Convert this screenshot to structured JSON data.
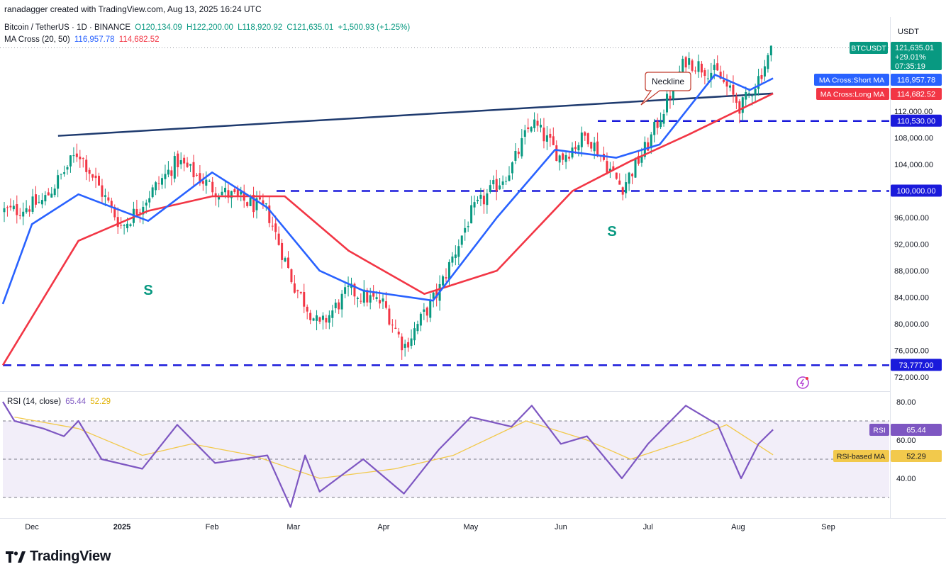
{
  "header": {
    "credit": "ranadagger created with TradingView.com, Aug 13, 2025 16:24 UTC",
    "symbol": "Bitcoin / TetherUS · 1D · BINANCE",
    "open": "O120,134.09",
    "high": "H122,200.00",
    "low": "L118,920.92",
    "close": "C121,635.01",
    "change": "+1,500.93 (+1.25%)",
    "ma_label": "MA Cross (20, 50)",
    "ma_short_val": "116,957.78",
    "ma_long_val": "114,682.52"
  },
  "rsi_header": {
    "label": "RSI (14, close)",
    "rsi_val": "65.44",
    "ma_val": "52.29"
  },
  "price_axis": {
    "currency": "USDT",
    "ticks": [
      "72,000.00",
      "76,000.00",
      "80,000.00",
      "84,000.00",
      "88,000.00",
      "92,000.00",
      "96,000.00",
      "100,000.00",
      "104,000.00",
      "108,000.00",
      "112,000.00"
    ]
  },
  "price_tags": {
    "symbol": "BTCUSDT",
    "price": "121,635.01",
    "pct": "+29.01%",
    "countdown": "07:35:19",
    "short_ma_label": "MA Cross:Short MA",
    "short_ma": "116,957.78",
    "long_ma_label": "MA Cross:Long MA",
    "long_ma": "114,682.52",
    "level_110": "110,530.00",
    "level_100": "100,000.00",
    "level_73": "73,777.00"
  },
  "rsi_axis": {
    "ticks": [
      "80.00",
      "60.00",
      "40.00"
    ],
    "rsi_tag_label": "RSI",
    "rsi_tag": "65.44",
    "ma_tag_label": "RSI-based MA",
    "ma_tag": "52.29"
  },
  "time_axis": [
    "Dec",
    "2025",
    "Feb",
    "Mar",
    "Apr",
    "May",
    "Jun",
    "Jul",
    "Aug",
    "Sep"
  ],
  "annotations": {
    "neckline": "Neckline",
    "left_shoulder": "S",
    "right_shoulder": "S"
  },
  "brand": "TradingView",
  "colors": {
    "up": "#089981",
    "down": "#f23645",
    "short_ma": "#2962ff",
    "long_ma": "#f23645",
    "neckline": "#1e3a6e",
    "levels": "#1a1adb",
    "rsi": "#7e57c2",
    "rsi_ma": "#f2c94c"
  },
  "chart_data": {
    "type": "candlestick",
    "title": "Bitcoin / TetherUS · 1D · BINANCE",
    "ylabel": "USDT",
    "ylim": [
      71000,
      124000
    ],
    "levels": [
      110530,
      100000,
      73777
    ],
    "neckline": {
      "from": {
        "date": "2024-12-10",
        "price": 108300
      },
      "to": {
        "date": "2025-08-13",
        "price": 114682.52
      }
    },
    "closes": [
      {
        "date": "2024-11-25",
        "close": 97000
      },
      {
        "date": "2024-12-05",
        "close": 98500
      },
      {
        "date": "2024-12-17",
        "close": 106000
      },
      {
        "date": "2025-01-01",
        "close": 94500
      },
      {
        "date": "2025-01-20",
        "close": 104500
      },
      {
        "date": "2025-02-01",
        "close": 100500
      },
      {
        "date": "2025-02-20",
        "close": 97000
      },
      {
        "date": "2025-03-01",
        "close": 86000
      },
      {
        "date": "2025-03-10",
        "close": 79500
      },
      {
        "date": "2025-03-20",
        "close": 85000
      },
      {
        "date": "2025-04-01",
        "close": 83000
      },
      {
        "date": "2025-04-08",
        "close": 76500
      },
      {
        "date": "2025-04-20",
        "close": 85000
      },
      {
        "date": "2025-05-01",
        "close": 96500
      },
      {
        "date": "2025-05-15",
        "close": 103500
      },
      {
        "date": "2025-05-22",
        "close": 110500
      },
      {
        "date": "2025-06-01",
        "close": 105000
      },
      {
        "date": "2025-06-10",
        "close": 108500
      },
      {
        "date": "2025-06-22",
        "close": 100500
      },
      {
        "date": "2025-07-01",
        "close": 107000
      },
      {
        "date": "2025-07-10",
        "close": 116000
      },
      {
        "date": "2025-07-14",
        "close": 119800
      },
      {
        "date": "2025-07-25",
        "close": 117500
      },
      {
        "date": "2025-08-02",
        "close": 112500
      },
      {
        "date": "2025-08-08",
        "close": 117000
      },
      {
        "date": "2025-08-13",
        "close": 121635.01
      }
    ],
    "series": [
      {
        "name": "MA Cross:Short MA",
        "values": [
          {
            "date": "2024-11-21",
            "value": 83000
          },
          {
            "date": "2024-12-01",
            "value": 95000
          },
          {
            "date": "2024-12-17",
            "value": 99500
          },
          {
            "date": "2025-01-10",
            "value": 95500
          },
          {
            "date": "2025-02-01",
            "value": 102800
          },
          {
            "date": "2025-02-20",
            "value": 97500
          },
          {
            "date": "2025-03-10",
            "value": 88000
          },
          {
            "date": "2025-03-25",
            "value": 85000
          },
          {
            "date": "2025-04-18",
            "value": 83500
          },
          {
            "date": "2025-05-10",
            "value": 96000
          },
          {
            "date": "2025-05-30",
            "value": 106200
          },
          {
            "date": "2025-06-20",
            "value": 105000
          },
          {
            "date": "2025-07-05",
            "value": 107000
          },
          {
            "date": "2025-07-24",
            "value": 117500
          },
          {
            "date": "2025-08-05",
            "value": 115200
          },
          {
            "date": "2025-08-13",
            "value": 116957.78
          }
        ]
      },
      {
        "name": "MA Cross:Long MA",
        "values": [
          {
            "date": "2024-11-21",
            "value": 73777
          },
          {
            "date": "2024-12-17",
            "value": 92500
          },
          {
            "date": "2025-01-10",
            "value": 97000
          },
          {
            "date": "2025-02-01",
            "value": 99200
          },
          {
            "date": "2025-02-26",
            "value": 99200
          },
          {
            "date": "2025-03-20",
            "value": 91000
          },
          {
            "date": "2025-04-15",
            "value": 84500
          },
          {
            "date": "2025-05-10",
            "value": 88000
          },
          {
            "date": "2025-06-05",
            "value": 100000
          },
          {
            "date": "2025-06-25",
            "value": 104500
          },
          {
            "date": "2025-07-15",
            "value": 108500
          },
          {
            "date": "2025-08-13",
            "value": 114682.52
          }
        ]
      }
    ],
    "rsi": {
      "label": "RSI (14, close)",
      "ylim": [
        20,
        85
      ],
      "bands": [
        70,
        50,
        30
      ],
      "series": [
        {
          "name": "RSI",
          "values": [
            {
              "date": "2024-11-21",
              "value": 80
            },
            {
              "date": "2024-11-25",
              "value": 70
            },
            {
              "date": "2024-12-05",
              "value": 66
            },
            {
              "date": "2024-12-12",
              "value": 62
            },
            {
              "date": "2024-12-17",
              "value": 70
            },
            {
              "date": "2024-12-25",
              "value": 50
            },
            {
              "date": "2025-01-08",
              "value": 45
            },
            {
              "date": "2025-01-20",
              "value": 68
            },
            {
              "date": "2025-02-02",
              "value": 48
            },
            {
              "date": "2025-02-20",
              "value": 52
            },
            {
              "date": "2025-02-28",
              "value": 25
            },
            {
              "date": "2025-03-05",
              "value": 52
            },
            {
              "date": "2025-03-10",
              "value": 33
            },
            {
              "date": "2025-03-25",
              "value": 50
            },
            {
              "date": "2025-04-08",
              "value": 32
            },
            {
              "date": "2025-04-20",
              "value": 55
            },
            {
              "date": "2025-05-01",
              "value": 72
            },
            {
              "date": "2025-05-15",
              "value": 67
            },
            {
              "date": "2025-05-22",
              "value": 78
            },
            {
              "date": "2025-06-01",
              "value": 58
            },
            {
              "date": "2025-06-10",
              "value": 62
            },
            {
              "date": "2025-06-22",
              "value": 40
            },
            {
              "date": "2025-07-01",
              "value": 58
            },
            {
              "date": "2025-07-14",
              "value": 78
            },
            {
              "date": "2025-07-25",
              "value": 68
            },
            {
              "date": "2025-08-02",
              "value": 40
            },
            {
              "date": "2025-08-08",
              "value": 58
            },
            {
              "date": "2025-08-13",
              "value": 65.44
            }
          ]
        },
        {
          "name": "RSI-based MA",
          "values": [
            {
              "date": "2024-11-25",
              "value": 72
            },
            {
              "date": "2024-12-17",
              "value": 66
            },
            {
              "date": "2025-01-08",
              "value": 52
            },
            {
              "date": "2025-01-25",
              "value": 58
            },
            {
              "date": "2025-02-15",
              "value": 52
            },
            {
              "date": "2025-03-10",
              "value": 40
            },
            {
              "date": "2025-04-05",
              "value": 45
            },
            {
              "date": "2025-04-25",
              "value": 52
            },
            {
              "date": "2025-05-20",
              "value": 70
            },
            {
              "date": "2025-06-10",
              "value": 60
            },
            {
              "date": "2025-06-25",
              "value": 50
            },
            {
              "date": "2025-07-15",
              "value": 60
            },
            {
              "date": "2025-07-28",
              "value": 68
            },
            {
              "date": "2025-08-13",
              "value": 52.29
            }
          ]
        }
      ]
    }
  }
}
